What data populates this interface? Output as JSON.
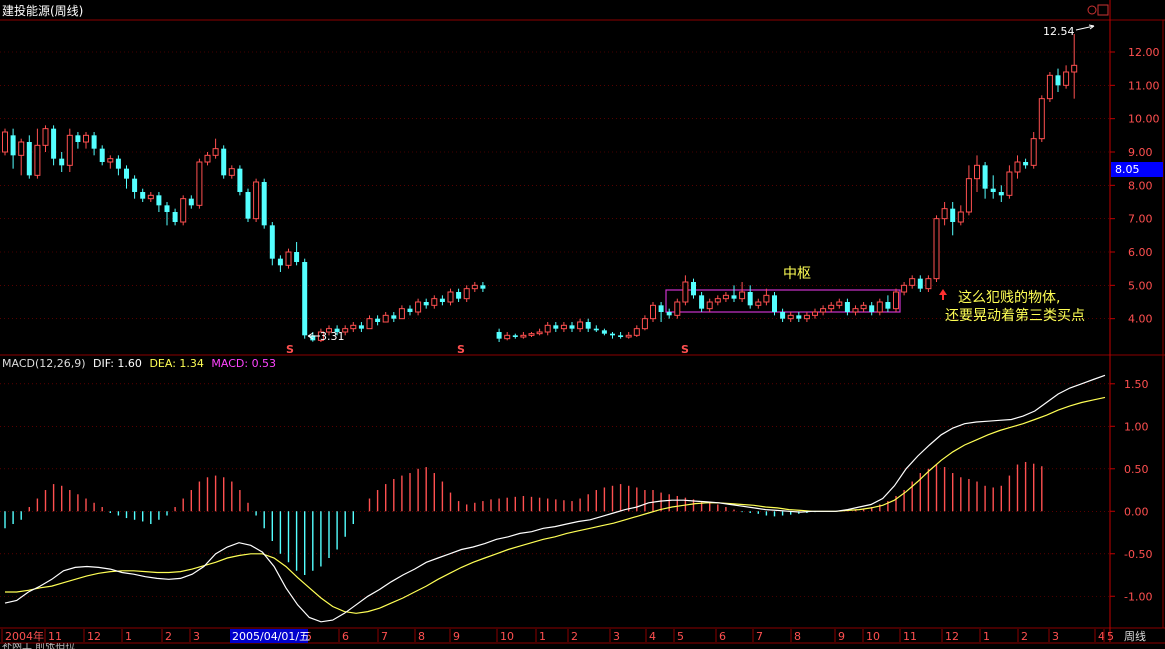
{
  "header": {
    "title": "建投能源(周线)"
  },
  "indicator": {
    "name": "MACD(12,26,9)",
    "dif_text": "DIF: 1.60",
    "dea_text": "DEA: 1.34",
    "macd_text": "MACD: 0.53"
  },
  "annotations": {
    "box_label": "中枢",
    "comment_line1": "这么犯贱的物体,",
    "comment_line2": "还要晃动着第三类买点",
    "high_label": "12.54",
    "low_label": "3.31",
    "current_price": "8.05",
    "s_marker": "S"
  },
  "bottom": {
    "selected_date": "2005/04/01/五",
    "period": "周线",
    "partial_text": "补网工 前张拍拉"
  },
  "colors": {
    "up": "#ff5050",
    "down": "#54ffff",
    "dif": "#ffffff",
    "dea": "#ffff55",
    "grid": "#8b0000",
    "axis": "#c00000",
    "box": "#cc33cc",
    "label": "#ffff55",
    "price_tag": "#0000ff",
    "date_tag": "#0000cc"
  },
  "chart_data": {
    "type": "candlestick",
    "price_axis": {
      "ticks": [
        "4.00",
        "5.00",
        "6.00",
        "7.00",
        "8.00",
        "9.00",
        "10.00",
        "11.00",
        "12.00"
      ],
      "range": [
        3.0,
        12.9
      ]
    },
    "macd_axis": {
      "ticks": [
        "1.50",
        "1.00",
        "0.50",
        "0.00",
        "-0.50",
        "-1.00"
      ],
      "range": [
        -1.35,
        1.78
      ]
    },
    "x_labels": [
      "2004年",
      "11",
      "12",
      "1",
      "2",
      "3",
      "4",
      "5",
      "6",
      "7",
      "8",
      "9",
      "10",
      "1",
      "2",
      "3",
      "4",
      "5",
      "6",
      "7",
      "8",
      "9",
      "10",
      "11",
      "12",
      "1",
      "2",
      "3",
      "4",
      "5"
    ],
    "candles": [
      [
        9.0,
        9.6,
        8.9,
        9.7
      ],
      [
        9.5,
        8.9,
        8.5,
        9.7
      ],
      [
        8.9,
        9.3,
        8.3,
        9.4
      ],
      [
        9.3,
        8.3,
        8.2,
        9.5
      ],
      [
        8.3,
        9.2,
        8.2,
        9.7
      ],
      [
        9.2,
        9.7,
        9.0,
        9.8
      ],
      [
        9.7,
        8.8,
        8.6,
        9.8
      ],
      [
        8.8,
        8.6,
        8.4,
        9.0
      ],
      [
        8.6,
        9.5,
        8.4,
        9.7
      ],
      [
        9.5,
        9.3,
        9.1,
        9.6
      ],
      [
        9.3,
        9.5,
        9.1,
        9.6
      ],
      [
        9.5,
        9.1,
        8.9,
        9.6
      ],
      [
        9.1,
        8.7,
        8.6,
        9.2
      ],
      [
        8.7,
        8.8,
        8.5,
        8.9
      ],
      [
        8.8,
        8.5,
        8.3,
        8.9
      ],
      [
        8.5,
        8.2,
        7.9,
        8.6
      ],
      [
        8.2,
        7.8,
        7.6,
        8.3
      ],
      [
        7.8,
        7.6,
        7.5,
        7.9
      ],
      [
        7.6,
        7.7,
        7.5,
        7.8
      ],
      [
        7.7,
        7.4,
        7.2,
        7.8
      ],
      [
        7.4,
        7.2,
        6.8,
        7.5
      ],
      [
        7.2,
        6.9,
        6.8,
        7.3
      ],
      [
        6.9,
        7.6,
        6.8,
        7.7
      ],
      [
        7.6,
        7.4,
        7.3,
        7.7
      ],
      [
        7.4,
        8.7,
        7.3,
        8.8
      ],
      [
        8.7,
        8.9,
        8.6,
        9.0
      ],
      [
        8.9,
        9.1,
        8.8,
        9.4
      ],
      [
        9.1,
        8.3,
        8.2,
        9.2
      ],
      [
        8.3,
        8.5,
        8.2,
        8.6
      ],
      [
        8.5,
        7.8,
        7.7,
        8.6
      ],
      [
        7.8,
        7.0,
        6.9,
        7.9
      ],
      [
        7.0,
        8.1,
        6.9,
        8.2
      ],
      [
        8.1,
        6.8,
        6.7,
        8.2
      ],
      [
        6.8,
        5.8,
        5.6,
        6.9
      ],
      [
        5.8,
        5.6,
        5.4,
        5.9
      ],
      [
        5.6,
        6.0,
        5.5,
        6.1
      ],
      [
        6.0,
        5.7,
        5.6,
        6.3
      ],
      [
        5.7,
        3.5,
        3.4,
        5.8
      ],
      [
        3.5,
        3.35,
        3.31,
        3.6
      ],
      [
        3.35,
        3.6,
        3.3,
        3.7
      ],
      [
        3.6,
        3.7,
        3.5,
        3.8
      ],
      [
        3.7,
        3.6,
        3.5,
        3.8
      ],
      [
        3.6,
        3.7,
        3.5,
        3.8
      ],
      [
        3.7,
        3.8,
        3.6,
        3.9
      ],
      [
        3.8,
        3.7,
        3.6,
        3.9
      ],
      [
        3.7,
        4.0,
        3.7,
        4.1
      ],
      [
        4.0,
        3.9,
        3.8,
        4.1
      ],
      [
        3.9,
        4.1,
        3.9,
        4.2
      ],
      [
        4.1,
        4.0,
        3.9,
        4.2
      ],
      [
        4.0,
        4.3,
        4.0,
        4.4
      ],
      [
        4.3,
        4.2,
        4.1,
        4.4
      ],
      [
        4.2,
        4.5,
        4.1,
        4.6
      ],
      [
        4.5,
        4.4,
        4.3,
        4.6
      ],
      [
        4.4,
        4.6,
        4.3,
        4.7
      ],
      [
        4.6,
        4.5,
        4.4,
        4.7
      ],
      [
        4.5,
        4.8,
        4.4,
        4.9
      ],
      [
        4.8,
        4.6,
        4.5,
        4.9
      ],
      [
        4.6,
        4.9,
        4.5,
        5.0
      ],
      [
        4.9,
        5.0,
        4.8,
        5.1
      ],
      [
        5.0,
        4.9,
        4.8,
        5.1
      ],
      null,
      [
        3.6,
        3.4,
        3.3,
        3.7
      ],
      [
        3.4,
        3.5,
        3.35,
        3.6
      ],
      [
        3.5,
        3.45,
        3.4,
        3.55
      ],
      [
        3.45,
        3.5,
        3.4,
        3.6
      ],
      [
        3.5,
        3.55,
        3.45,
        3.6
      ],
      [
        3.55,
        3.6,
        3.5,
        3.7
      ],
      [
        3.6,
        3.8,
        3.5,
        3.9
      ],
      [
        3.8,
        3.7,
        3.6,
        3.9
      ],
      [
        3.7,
        3.8,
        3.6,
        3.9
      ],
      [
        3.8,
        3.7,
        3.6,
        3.9
      ],
      [
        3.7,
        3.9,
        3.6,
        4.0
      ],
      [
        3.9,
        3.7,
        3.6,
        4.0
      ],
      [
        3.7,
        3.65,
        3.6,
        3.8
      ],
      [
        3.65,
        3.55,
        3.5,
        3.7
      ],
      [
        3.55,
        3.5,
        3.4,
        3.6
      ],
      [
        3.5,
        3.45,
        3.4,
        3.6
      ],
      [
        3.45,
        3.5,
        3.4,
        3.6
      ],
      [
        3.5,
        3.7,
        3.45,
        3.8
      ],
      [
        3.7,
        4.0,
        3.65,
        4.1
      ],
      [
        4.0,
        4.4,
        3.9,
        4.5
      ],
      [
        4.4,
        4.2,
        3.9,
        4.5
      ],
      [
        4.2,
        4.1,
        4.0,
        4.3
      ],
      [
        4.1,
        4.5,
        4.0,
        4.6
      ],
      [
        4.5,
        5.1,
        4.4,
        5.3
      ],
      [
        5.1,
        4.7,
        4.6,
        5.2
      ],
      [
        4.7,
        4.3,
        4.2,
        4.8
      ],
      [
        4.3,
        4.5,
        4.2,
        4.6
      ],
      [
        4.5,
        4.6,
        4.4,
        4.7
      ],
      [
        4.6,
        4.7,
        4.5,
        4.8
      ],
      [
        4.7,
        4.6,
        4.5,
        5.0
      ],
      [
        4.6,
        4.8,
        4.5,
        5.1
      ],
      [
        4.8,
        4.4,
        4.3,
        5.0
      ],
      [
        4.4,
        4.5,
        4.3,
        4.6
      ],
      [
        4.5,
        4.7,
        4.4,
        4.9
      ],
      [
        4.7,
        4.2,
        4.1,
        4.8
      ],
      [
        4.2,
        4.0,
        3.9,
        4.3
      ],
      [
        4.0,
        4.1,
        3.9,
        4.2
      ],
      [
        4.1,
        4.0,
        3.9,
        4.2
      ],
      [
        4.0,
        4.1,
        3.9,
        4.2
      ],
      [
        4.1,
        4.2,
        4.0,
        4.3
      ],
      [
        4.2,
        4.3,
        4.1,
        4.4
      ],
      [
        4.3,
        4.4,
        4.2,
        4.5
      ],
      [
        4.4,
        4.5,
        4.3,
        4.6
      ],
      [
        4.5,
        4.2,
        4.1,
        4.6
      ],
      [
        4.2,
        4.3,
        4.1,
        4.4
      ],
      [
        4.3,
        4.4,
        4.2,
        4.5
      ],
      [
        4.4,
        4.2,
        4.1,
        4.5
      ],
      [
        4.2,
        4.5,
        4.1,
        4.6
      ],
      [
        4.5,
        4.3,
        4.2,
        4.7
      ],
      [
        4.3,
        4.8,
        4.2,
        4.9
      ],
      [
        4.8,
        5.0,
        4.7,
        5.1
      ],
      [
        5.0,
        5.2,
        4.9,
        5.3
      ],
      [
        5.2,
        4.9,
        4.8,
        5.3
      ],
      [
        4.9,
        5.2,
        4.8,
        5.3
      ],
      [
        5.2,
        7.0,
        5.1,
        7.1
      ],
      [
        7.0,
        7.3,
        6.8,
        7.5
      ],
      [
        7.3,
        6.9,
        6.5,
        7.5
      ],
      [
        6.9,
        7.2,
        6.8,
        7.4
      ],
      [
        7.2,
        8.2,
        7.1,
        8.6
      ],
      [
        8.2,
        8.6,
        7.8,
        8.9
      ],
      [
        8.6,
        7.9,
        7.6,
        8.7
      ],
      [
        7.9,
        7.8,
        7.6,
        8.3
      ],
      [
        7.8,
        7.7,
        7.5,
        8.0
      ],
      [
        7.7,
        8.4,
        7.6,
        8.6
      ],
      [
        8.4,
        8.7,
        8.2,
        8.9
      ],
      [
        8.7,
        8.6,
        8.5,
        8.8
      ],
      [
        8.6,
        9.4,
        8.5,
        9.6
      ],
      [
        9.4,
        10.6,
        9.3,
        10.7
      ],
      [
        10.6,
        11.3,
        10.5,
        11.4
      ],
      [
        11.3,
        11.0,
        10.8,
        11.5
      ],
      [
        11.0,
        11.4,
        10.9,
        11.6
      ],
      [
        11.4,
        11.6,
        10.6,
        12.54
      ]
    ],
    "macd_hist": [
      -0.2,
      -0.15,
      -0.1,
      0.05,
      0.15,
      0.25,
      0.32,
      0.3,
      0.25,
      0.2,
      0.15,
      0.1,
      0.05,
      -0.02,
      -0.05,
      -0.08,
      -0.1,
      -0.12,
      -0.15,
      -0.1,
      -0.05,
      0.05,
      0.15,
      0.25,
      0.35,
      0.4,
      0.42,
      0.4,
      0.35,
      0.25,
      0.1,
      -0.05,
      -0.2,
      -0.35,
      -0.5,
      -0.6,
      -0.7,
      -0.75,
      -0.7,
      -0.65,
      -0.55,
      -0.45,
      -0.3,
      -0.15,
      0.0,
      0.15,
      0.25,
      0.32,
      0.38,
      0.42,
      0.45,
      0.5,
      0.52,
      0.45,
      0.35,
      0.22,
      0.12,
      0.08,
      0.1,
      0.12,
      0.14,
      0.15,
      0.16,
      0.17,
      0.18,
      0.17,
      0.16,
      0.15,
      0.14,
      0.13,
      0.12,
      0.15,
      0.2,
      0.25,
      0.28,
      0.3,
      0.32,
      0.3,
      0.28,
      0.25,
      0.25,
      0.22,
      0.2,
      0.18,
      0.16,
      0.14,
      0.12,
      0.1,
      0.08,
      0.05,
      0.02,
      -0.01,
      -0.02,
      -0.03,
      -0.05,
      -0.06,
      -0.05,
      -0.04,
      -0.03,
      -0.02,
      -0.01,
      0.0,
      0.0,
      0.0,
      0.01,
      0.02,
      0.03,
      0.05,
      0.08,
      0.12,
      0.18,
      0.25,
      0.35,
      0.45,
      0.5,
      0.55,
      0.52,
      0.45,
      0.4,
      0.38,
      0.35,
      0.3,
      0.28,
      0.3,
      0.42,
      0.55,
      0.58,
      0.56,
      0.53
    ],
    "dif": [
      -1.08,
      -1.05,
      -0.95,
      -0.88,
      -0.8,
      -0.7,
      -0.66,
      -0.65,
      -0.66,
      -0.68,
      -0.72,
      -0.74,
      -0.77,
      -0.79,
      -0.8,
      -0.79,
      -0.74,
      -0.65,
      -0.5,
      -0.42,
      -0.37,
      -0.4,
      -0.48,
      -0.65,
      -0.9,
      -1.1,
      -1.25,
      -1.3,
      -1.28,
      -1.2,
      -1.1,
      -1.0,
      -0.92,
      -0.83,
      -0.75,
      -0.68,
      -0.6,
      -0.55,
      -0.5,
      -0.45,
      -0.42,
      -0.38,
      -0.33,
      -0.3,
      -0.26,
      -0.24,
      -0.2,
      -0.18,
      -0.15,
      -0.12,
      -0.1,
      -0.06,
      -0.02,
      0.02,
      0.05,
      0.1,
      0.12,
      0.13,
      0.13,
      0.12,
      0.11,
      0.1,
      0.08,
      0.06,
      0.04,
      0.02,
      0.01,
      0.0,
      -0.01,
      0.0,
      0.0,
      0.0,
      0.02,
      0.05,
      0.08,
      0.15,
      0.3,
      0.5,
      0.65,
      0.78,
      0.9,
      0.98,
      1.03,
      1.05,
      1.06,
      1.07,
      1.08,
      1.12,
      1.18,
      1.28,
      1.38,
      1.45,
      1.5,
      1.55,
      1.6
    ],
    "dea": [
      -0.95,
      -0.95,
      -0.93,
      -0.9,
      -0.88,
      -0.84,
      -0.8,
      -0.76,
      -0.73,
      -0.71,
      -0.7,
      -0.7,
      -0.71,
      -0.72,
      -0.72,
      -0.71,
      -0.68,
      -0.64,
      -0.6,
      -0.55,
      -0.52,
      -0.5,
      -0.5,
      -0.55,
      -0.65,
      -0.78,
      -0.9,
      -1.02,
      -1.12,
      -1.18,
      -1.2,
      -1.18,
      -1.14,
      -1.08,
      -1.02,
      -0.95,
      -0.88,
      -0.8,
      -0.73,
      -0.66,
      -0.6,
      -0.55,
      -0.5,
      -0.45,
      -0.41,
      -0.37,
      -0.33,
      -0.3,
      -0.26,
      -0.23,
      -0.2,
      -0.17,
      -0.14,
      -0.1,
      -0.06,
      -0.02,
      0.02,
      0.05,
      0.07,
      0.09,
      0.1,
      0.1,
      0.09,
      0.08,
      0.07,
      0.05,
      0.04,
      0.02,
      0.01,
      0.0,
      0.0,
      0.0,
      0.01,
      0.02,
      0.04,
      0.07,
      0.13,
      0.23,
      0.35,
      0.48,
      0.6,
      0.7,
      0.78,
      0.84,
      0.9,
      0.95,
      0.99,
      1.03,
      1.08,
      1.13,
      1.19,
      1.24,
      1.28,
      1.31,
      1.34
    ]
  }
}
